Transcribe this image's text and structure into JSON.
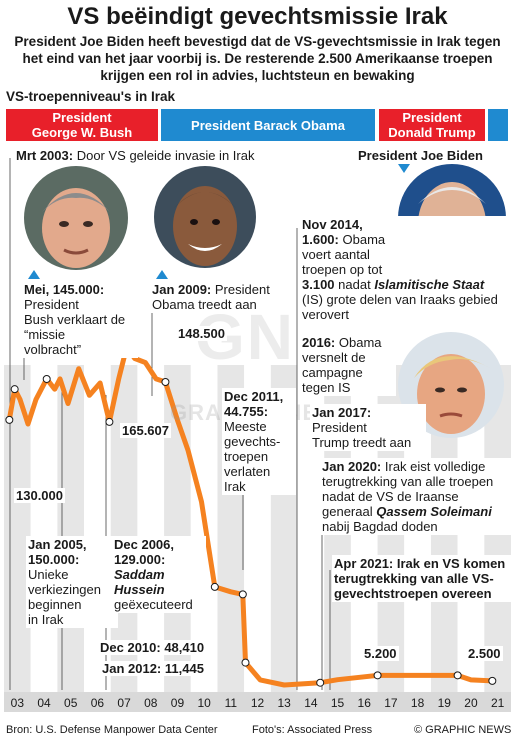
{
  "title": "VS beëindigt gevechtsmissie Irak",
  "intro": "President Joe Biden heeft bevestigd dat de VS-gevechtsmissie in Irak tegen het eind van het jaar voorbij is. De resterende 2.500 Amerikaanse troepen krijgen een rol in advies, luchtsteun en bewaking",
  "subhead": "VS-troepenniveau's in Irak",
  "presidents": {
    "bush_line1": "President",
    "bush_line2": "George W. Bush",
    "obama": "President Barack Obama",
    "trump_line1": "President",
    "trump_line2": "Donald Trump",
    "biden": "President Joe Biden"
  },
  "annotations": {
    "a2003_date": "Mrt 2003:",
    "a2003_text": "Door VS geleide invasie in Irak",
    "mei_date": "Mei, 145.000:",
    "mei_l1": "President",
    "mei_l2": "Bush verklaart de",
    "mei_l3": "“missie",
    "mei_l4": "volbracht”",
    "j2009_date": "Jan 2009:",
    "j2009_text": "President",
    "j2009_l2": "Obama treedt aan",
    "nov2014_l1": "Nov 2014,",
    "nov2014_l2": "1.600:",
    "nov2014_l2b": "Obama",
    "nov2014_l3": "voert aantal",
    "nov2014_l4": "troepen op tot",
    "nov2014_l5a": "3.100",
    "nov2014_l5b": "nadat",
    "nov2014_l5c": "Islamitische Staat",
    "nov2014_l6": "(IS) grote delen van Iraaks gebied",
    "nov2014_l7": "verovert",
    "a2016_date": "2016:",
    "a2016_l1": "Obama",
    "a2016_l2": "versnelt de",
    "a2016_l3": "campagne",
    "a2016_l4": "tegen IS",
    "dec2011_l1": "Dec 2011,",
    "dec2011_l2": "44.755:",
    "dec2011_l3": "Meeste",
    "dec2011_l4": "gevechts-",
    "dec2011_l5": "troepen",
    "dec2011_l6": "verlaten",
    "dec2011_l7": "Irak",
    "j2017_date": "Jan 2017:",
    "j2017_l2": "President",
    "j2017_l3": "Trump treedt aan",
    "j2020_date": "Jan 2020:",
    "j2020_l1": "Irak eist volledige",
    "j2020_l2": "terugtrekking van alle troepen",
    "j2020_l3": "nadat de VS de Iraanse",
    "j2020_l4": "generaal",
    "j2020_l4b": "Qassem Soleimani",
    "j2020_l5": "nabij Bagdad doden",
    "apr2021_l1": "Apr 2021: Irak en VS komen",
    "apr2021_l2": "terugtrekking van alle VS-",
    "apr2021_l3": "gevechtstroepen overeen",
    "jan2005_l1": "Jan 2005,",
    "jan2005_l2": "150.000:",
    "jan2005_l3": "Unieke",
    "jan2005_l4": "verkiezingen",
    "jan2005_l5": "beginnen",
    "jan2005_l6": "in Irak",
    "dec2006_l1": "Dec 2006,",
    "dec2006_l2": "129.000:",
    "dec2006_l3": "Saddam",
    "dec2006_l4": "Hussein",
    "dec2006_l5": "geëxecuteerd"
  },
  "value_labels": {
    "v130": "130.000",
    "v148": "148.500",
    "v165": "165.607",
    "v5200": "5.200",
    "v2500": "2.500",
    "dec2010": "Dec 2010: 48,410",
    "jan2012": "Jan 2012: 11,445"
  },
  "footer": {
    "source": "Bron: U.S. Defense Manpower Data Center",
    "photo": "Foto's: Associated Press",
    "credit": "© GRAPHIC NEWS"
  },
  "watermark": "GN",
  "watermark2": "GRAPHIC NEWS",
  "colors": {
    "line": "#f58220",
    "red": "#e8202a",
    "blue": "#1f8ad0",
    "band": "#e6e6e6"
  },
  "chart_data": {
    "type": "line",
    "title": "VS-troepenniveau's in Irak",
    "categories": [
      "03",
      "04",
      "05",
      "06",
      "07",
      "08",
      "09",
      "10",
      "11",
      "12",
      "13",
      "14",
      "15",
      "16",
      "17",
      "18",
      "19",
      "20",
      "21"
    ],
    "series": [
      {
        "values_approx": [
          [
            2003.2,
            130000
          ],
          [
            2003.4,
            145000
          ],
          [
            2003.6,
            140000
          ],
          [
            2003.9,
            128000
          ],
          [
            2004.2,
            140000
          ],
          [
            2004.6,
            150000
          ],
          [
            2004.9,
            145000
          ],
          [
            2005.1,
            150000
          ],
          [
            2005.4,
            138000
          ],
          [
            2005.8,
            155000
          ],
          [
            2006.2,
            142000
          ],
          [
            2006.6,
            148000
          ],
          [
            2006.95,
            129000
          ],
          [
            2007.3,
            150000
          ],
          [
            2007.6,
            165607
          ],
          [
            2007.9,
            160000
          ],
          [
            2008.3,
            158000
          ],
          [
            2008.7,
            150000
          ],
          [
            2009.05,
            148500
          ],
          [
            2009.5,
            130000
          ],
          [
            2009.9,
            115000
          ],
          [
            2010.4,
            90000
          ],
          [
            2010.9,
            48410
          ],
          [
            2011.5,
            46000
          ],
          [
            2011.95,
            44755
          ],
          [
            2012.05,
            11445
          ],
          [
            2012.6,
            3000
          ],
          [
            2013.5,
            500
          ],
          [
            2014.85,
            1600
          ],
          [
            2015.5,
            3100
          ],
          [
            2016.5,
            4500
          ],
          [
            2017.0,
            5200
          ],
          [
            2018.5,
            5200
          ],
          [
            2019.5,
            5200
          ],
          [
            2020.0,
            5200
          ],
          [
            2020.5,
            3000
          ],
          [
            2021.3,
            2500
          ]
        ]
      }
    ],
    "ylim": [
      0,
      170000
    ],
    "grid": "alternating vertical bands per year"
  }
}
